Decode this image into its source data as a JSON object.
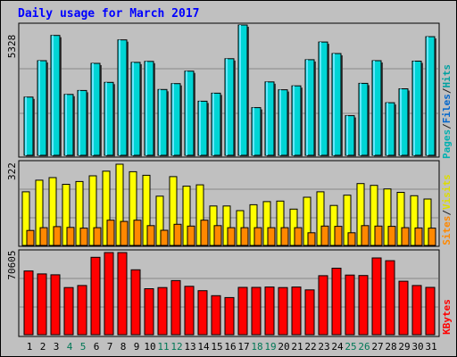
{
  "chart_data": [
    {
      "type": "bar",
      "title": "Daily usage for March 2017",
      "categories": [
        "1",
        "2",
        "3",
        "4",
        "5",
        "6",
        "7",
        "8",
        "9",
        "10",
        "11",
        "12",
        "13",
        "14",
        "15",
        "16",
        "17",
        "18",
        "19",
        "20",
        "21",
        "22",
        "23",
        "24",
        "25",
        "26",
        "27",
        "28",
        "29",
        "30",
        "31"
      ],
      "weekend_days": [
        "4",
        "5",
        "11",
        "12",
        "18",
        "19",
        "25",
        "26"
      ],
      "ymax_label": "5328",
      "ylim": [
        0,
        5328
      ],
      "series": [
        {
          "name": "Pages",
          "color": "#00ccff",
          "values": [
            0,
            0,
            0,
            0,
            0,
            0,
            0,
            0,
            0,
            0,
            0,
            0,
            0,
            0,
            0,
            0,
            0,
            0,
            0,
            0,
            0,
            0,
            0,
            0,
            0,
            0,
            0,
            0,
            0,
            0,
            0
          ]
        },
        {
          "name": "Files",
          "color": "#0088ee",
          "values": [
            0,
            0,
            0,
            0,
            0,
            0,
            0,
            0,
            0,
            0,
            0,
            0,
            0,
            0,
            0,
            0,
            0,
            0,
            0,
            0,
            0,
            0,
            0,
            0,
            0,
            0,
            0,
            0,
            0,
            0,
            0
          ]
        },
        {
          "name": "Hits",
          "color": "#00d5d5",
          "values": [
            2380,
            3870,
            4900,
            2490,
            2650,
            3760,
            2980,
            4720,
            3800,
            3840,
            2690,
            2930,
            3440,
            2210,
            2540,
            3950,
            5328,
            1950,
            3000,
            2680,
            2840,
            3910,
            4630,
            4160,
            1620,
            2940,
            3870,
            2150,
            2720,
            3850,
            4850
          ]
        }
      ],
      "legend_labels": [
        "Pages",
        "/",
        "Files",
        "/",
        "Hits"
      ],
      "legend_colors": [
        "#00cccc",
        "#222222",
        "#0066cc",
        "#222222",
        "#00aaaa"
      ]
    },
    {
      "type": "bar",
      "ymax_label": "322",
      "ylim": [
        0,
        322
      ],
      "series": [
        {
          "name": "Visits",
          "color": "#ffff00",
          "values": [
            208,
            253,
            263,
            237,
            248,
            270,
            288,
            315,
            286,
            272,
            191,
            267,
            230,
            235,
            153,
            153,
            135,
            158,
            170,
            172,
            141,
            187,
            208,
            155,
            195,
            240,
            233,
            219,
            206,
            193,
            180
          ]
        },
        {
          "name": "Sites",
          "color": "#ff8800",
          "values": [
            58,
            69,
            73,
            70,
            67,
            69,
            98,
            93,
            98,
            77,
            59,
            82,
            75,
            98,
            77,
            69,
            69,
            69,
            69,
            69,
            69,
            49,
            75,
            74,
            49,
            77,
            75,
            74,
            69,
            68,
            67
          ]
        }
      ],
      "legend_labels": [
        "Sites",
        "/",
        "Visits"
      ],
      "legend_colors": [
        "#ff8800",
        "#222222",
        "#e5e500"
      ]
    },
    {
      "type": "bar",
      "ymax_label": "70605",
      "ylim": [
        0,
        70605
      ],
      "series": [
        {
          "name": "KBytes",
          "color": "#ff0000",
          "values": [
            54800,
            52300,
            51500,
            40500,
            42300,
            66500,
            70605,
            70605,
            55800,
            39500,
            40500,
            46500,
            41600,
            37800,
            33500,
            31900,
            40700,
            40700,
            41000,
            40500,
            41000,
            38500,
            50700,
            57200,
            51300,
            50900,
            66000,
            63600,
            46000,
            42300,
            40700
          ]
        }
      ],
      "legend_labels": [
        "KBytes"
      ],
      "legend_colors": [
        "#ff0000"
      ]
    }
  ]
}
